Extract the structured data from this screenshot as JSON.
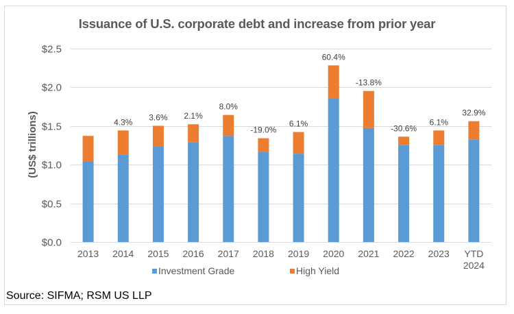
{
  "chart_data": {
    "type": "bar",
    "stacked": true,
    "title": "Issuance of U.S. corporate debt and increase from prior year",
    "xlabel": "",
    "ylabel": "(US$ trillions)",
    "ylim": [
      0,
      2.5
    ],
    "yticks": [
      0,
      0.5,
      1.0,
      1.5,
      2.0,
      2.5
    ],
    "ytick_labels": [
      "$0.0",
      "$0.5",
      "$1.0",
      "$1.5",
      "$2.0",
      "$2.5"
    ],
    "grid": true,
    "categories": [
      "2013",
      "2014",
      "2015",
      "2016",
      "2017",
      "2018",
      "2019",
      "2020",
      "2021",
      "2022",
      "2023",
      "YTD 2024"
    ],
    "category_lines": [
      [
        "2013"
      ],
      [
        "2014"
      ],
      [
        "2015"
      ],
      [
        "2016"
      ],
      [
        "2017"
      ],
      [
        "2018"
      ],
      [
        "2019"
      ],
      [
        "2020"
      ],
      [
        "2021"
      ],
      [
        "2022"
      ],
      [
        "2023"
      ],
      [
        "YTD",
        "2024"
      ]
    ],
    "series": [
      {
        "name": "Investment Grade",
        "color": "#5B9BD5",
        "values": [
          1.04,
          1.13,
          1.23,
          1.29,
          1.37,
          1.16,
          1.14,
          1.85,
          1.47,
          1.25,
          1.25,
          1.32
        ]
      },
      {
        "name": "High Yield",
        "color": "#ED7D31",
        "values": [
          0.33,
          0.31,
          0.27,
          0.23,
          0.27,
          0.18,
          0.28,
          0.43,
          0.48,
          0.11,
          0.19,
          0.24
        ]
      }
    ],
    "data_labels": [
      "",
      "4.3%",
      "3.6%",
      "2.1%",
      "8.0%",
      "-19.0%",
      "6.1%",
      "60.4%",
      "-13.8%",
      "-30.6%",
      "6.1%",
      "32.9%"
    ],
    "legend": {
      "position": "bottom",
      "entries": [
        "Investment Grade",
        "High Yield"
      ]
    }
  },
  "source": "Source: SIFMA; RSM US LLP"
}
